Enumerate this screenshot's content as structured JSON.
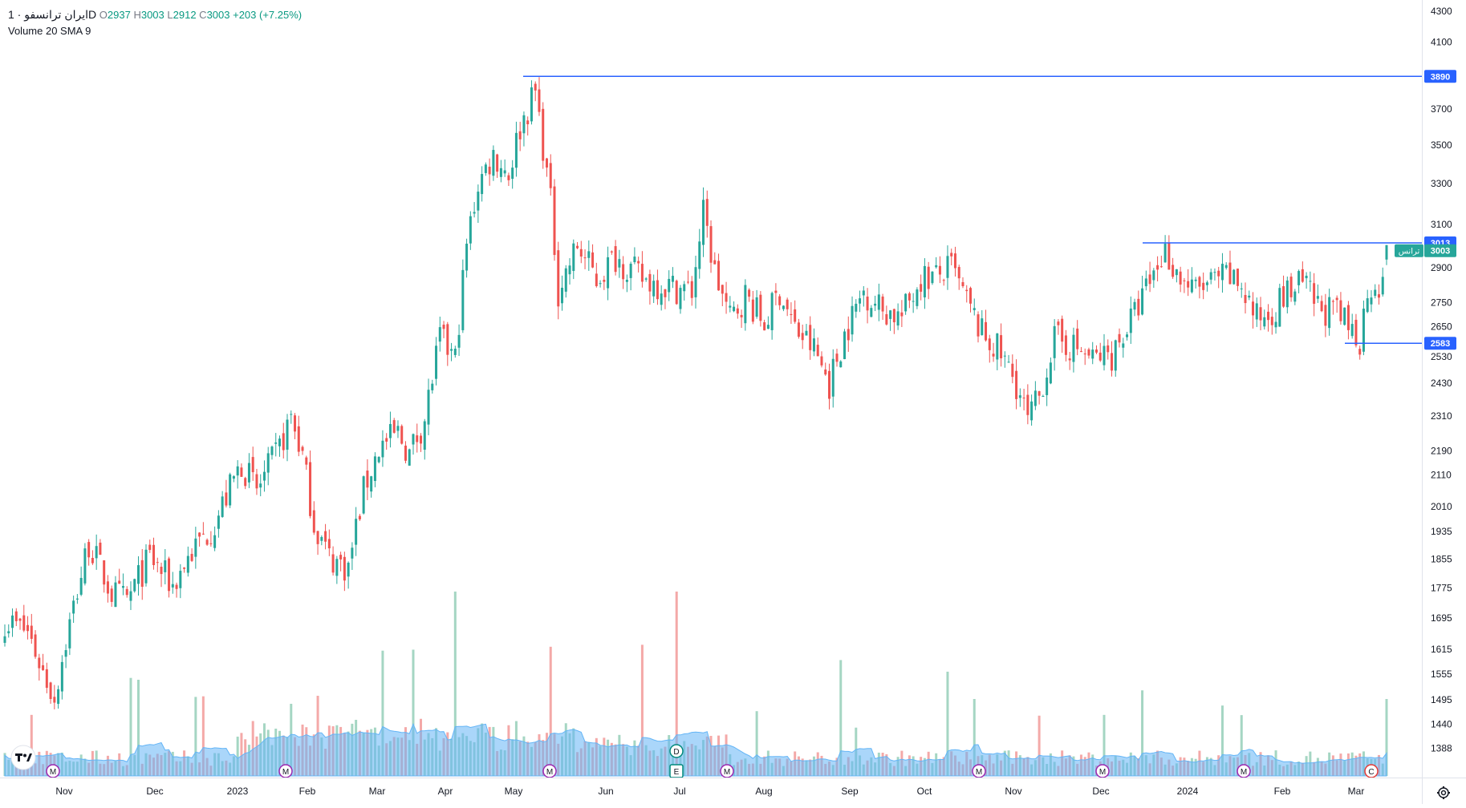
{
  "legend": {
    "symbol": "ایران ترانسفو · 1D",
    "o_label": "O",
    "o_value": "2937",
    "h_label": "H",
    "h_value": "3003",
    "l_label": "L",
    "l_value": "2912",
    "c_label": "C",
    "c_value": "3003",
    "change": "+203 (+7.25%)",
    "volume_label": "Volume 20 SMA 9"
  },
  "colors": {
    "up": "#26a69a",
    "down": "#ef5350",
    "up_vol": "#a5d6c3",
    "down_vol": "#f4a9a8",
    "sma_fill": "#64b5f6",
    "line": "#2962ff",
    "price_tag": "#26a69a"
  },
  "icons": {
    "logo": "tradingview-logo-icon",
    "settings": "gear-icon"
  },
  "price_tags": {
    "top_line": "3890",
    "resistance": "3013",
    "last": "3003",
    "last_caption": "ترانس",
    "support": "2583"
  },
  "event_markers": [
    "M",
    "M",
    "M",
    "M",
    "M",
    "M",
    "M",
    "D",
    "E",
    "C"
  ],
  "chart_data": {
    "type": "candlestick",
    "title": "ایران ترانسفو",
    "interval": "1D",
    "y_ticks": [
      "4300",
      "4100",
      "3900",
      "3700",
      "3500",
      "3300",
      "3100",
      "2900",
      "2750",
      "2650",
      "2530",
      "2430",
      "2310",
      "2190",
      "2110",
      "2010",
      "1935",
      "1855",
      "1775",
      "1695",
      "1615",
      "1555",
      "1495",
      "1440",
      "1388"
    ],
    "y_scale": "log",
    "ylim": [
      1330,
      4320
    ],
    "x_ticks": [
      "Nov",
      "Dec",
      "2023",
      "Feb",
      "Mar",
      "Apr",
      "May",
      "Jun",
      "Jul",
      "Aug",
      "Sep",
      "Oct",
      "Nov",
      "Dec",
      "2024",
      "Feb",
      "Mar"
    ],
    "horizontal_lines": [
      3890,
      3013,
      2583
    ],
    "anchors": [
      {
        "bar": 0,
        "price": 1690
      },
      {
        "bar": 6,
        "price": 1660
      },
      {
        "bar": 10,
        "price": 1560
      },
      {
        "bar": 13,
        "price": 1500
      },
      {
        "bar": 17,
        "price": 1680
      },
      {
        "bar": 22,
        "price": 1900
      },
      {
        "bar": 28,
        "price": 1760
      },
      {
        "bar": 32,
        "price": 1740
      },
      {
        "bar": 38,
        "price": 1860
      },
      {
        "bar": 44,
        "price": 1780
      },
      {
        "bar": 48,
        "price": 1860
      },
      {
        "bar": 55,
        "price": 1960
      },
      {
        "bar": 62,
        "price": 2150
      },
      {
        "bar": 66,
        "price": 2060
      },
      {
        "bar": 72,
        "price": 2200
      },
      {
        "bar": 75,
        "price": 2310
      },
      {
        "bar": 78,
        "price": 2170
      },
      {
        "bar": 81,
        "price": 1960
      },
      {
        "bar": 85,
        "price": 1860
      },
      {
        "bar": 90,
        "price": 1830
      },
      {
        "bar": 94,
        "price": 2060
      },
      {
        "bar": 98,
        "price": 2200
      },
      {
        "bar": 103,
        "price": 2250
      },
      {
        "bar": 106,
        "price": 2180
      },
      {
        "bar": 110,
        "price": 2300
      },
      {
        "bar": 114,
        "price": 2600
      },
      {
        "bar": 118,
        "price": 2520
      },
      {
        "bar": 121,
        "price": 3000
      },
      {
        "bar": 124,
        "price": 3300
      },
      {
        "bar": 128,
        "price": 3450
      },
      {
        "bar": 132,
        "price": 3350
      },
      {
        "bar": 135,
        "price": 3600
      },
      {
        "bar": 139,
        "price": 3800
      },
      {
        "bar": 141,
        "price": 3500
      },
      {
        "bar": 143,
        "price": 3200
      },
      {
        "bar": 145,
        "price": 2800
      },
      {
        "bar": 150,
        "price": 3000
      },
      {
        "bar": 155,
        "price": 2850
      },
      {
        "bar": 160,
        "price": 2950
      },
      {
        "bar": 167,
        "price": 2850
      },
      {
        "bar": 174,
        "price": 2820
      },
      {
        "bar": 180,
        "price": 2800
      },
      {
        "bar": 183,
        "price": 3150
      },
      {
        "bar": 186,
        "price": 2880
      },
      {
        "bar": 190,
        "price": 2680
      },
      {
        "bar": 194,
        "price": 2780
      },
      {
        "bar": 199,
        "price": 2660
      },
      {
        "bar": 203,
        "price": 2800
      },
      {
        "bar": 207,
        "price": 2640
      },
      {
        "bar": 212,
        "price": 2560
      },
      {
        "bar": 216,
        "price": 2430
      },
      {
        "bar": 220,
        "price": 2620
      },
      {
        "bar": 225,
        "price": 2800
      },
      {
        "bar": 230,
        "price": 2720
      },
      {
        "bar": 235,
        "price": 2690
      },
      {
        "bar": 240,
        "price": 2860
      },
      {
        "bar": 244,
        "price": 2860
      },
      {
        "bar": 248,
        "price": 2900
      },
      {
        "bar": 252,
        "price": 2750
      },
      {
        "bar": 256,
        "price": 2620
      },
      {
        "bar": 260,
        "price": 2560
      },
      {
        "bar": 265,
        "price": 2430
      },
      {
        "bar": 268,
        "price": 2290
      },
      {
        "bar": 271,
        "price": 2380
      },
      {
        "bar": 275,
        "price": 2600
      },
      {
        "bar": 280,
        "price": 2570
      },
      {
        "bar": 285,
        "price": 2520
      },
      {
        "bar": 290,
        "price": 2540
      },
      {
        "bar": 296,
        "price": 2700
      },
      {
        "bar": 300,
        "price": 2840
      },
      {
        "bar": 304,
        "price": 2980
      },
      {
        "bar": 307,
        "price": 2880
      },
      {
        "bar": 311,
        "price": 2800
      },
      {
        "bar": 316,
        "price": 2830
      },
      {
        "bar": 320,
        "price": 2860
      },
      {
        "bar": 324,
        "price": 2820
      },
      {
        "bar": 328,
        "price": 2680
      },
      {
        "bar": 332,
        "price": 2720
      },
      {
        "bar": 336,
        "price": 2790
      },
      {
        "bar": 340,
        "price": 2830
      },
      {
        "bar": 344,
        "price": 2730
      },
      {
        "bar": 348,
        "price": 2710
      },
      {
        "bar": 352,
        "price": 2650
      },
      {
        "bar": 355,
        "price": 2600
      },
      {
        "bar": 357,
        "price": 2800
      },
      {
        "bar": 359,
        "price": 2850
      },
      {
        "bar": 361,
        "price": 2800
      },
      {
        "bar": 362,
        "price": 3003
      }
    ]
  }
}
